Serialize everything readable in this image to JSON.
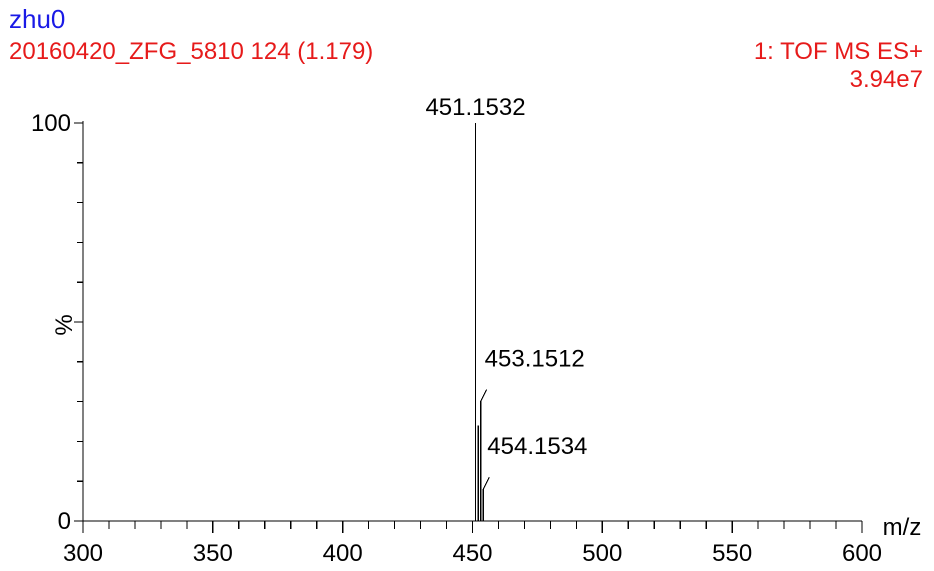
{
  "header": {
    "sample_name": "zhu0",
    "scan_info": "20160420_ZFG_5810 124 (1.179)",
    "function_label": "1: TOF MS ES+",
    "max_intensity": "3.94e7"
  },
  "colors": {
    "sample_name": "#1a1ae6",
    "header_red": "#e61a1a",
    "axis": "#000000"
  },
  "chart_data": {
    "type": "bar",
    "title": "",
    "xlabel": "m/z",
    "ylabel": "%",
    "xlim": [
      300,
      600
    ],
    "ylim": [
      0,
      100
    ],
    "x_ticks": [
      300,
      350,
      400,
      450,
      500,
      550,
      600
    ],
    "y_ticks": [
      0,
      100
    ],
    "grid": false,
    "peaks": [
      {
        "mz": 451.1532,
        "intensity": 100,
        "label": "451.1532"
      },
      {
        "mz": 452.1555,
        "intensity": 24,
        "label": ""
      },
      {
        "mz": 453.1512,
        "intensity": 30,
        "label": "453.1512"
      },
      {
        "mz": 454.1534,
        "intensity": 8,
        "label": "454.1534"
      }
    ]
  }
}
